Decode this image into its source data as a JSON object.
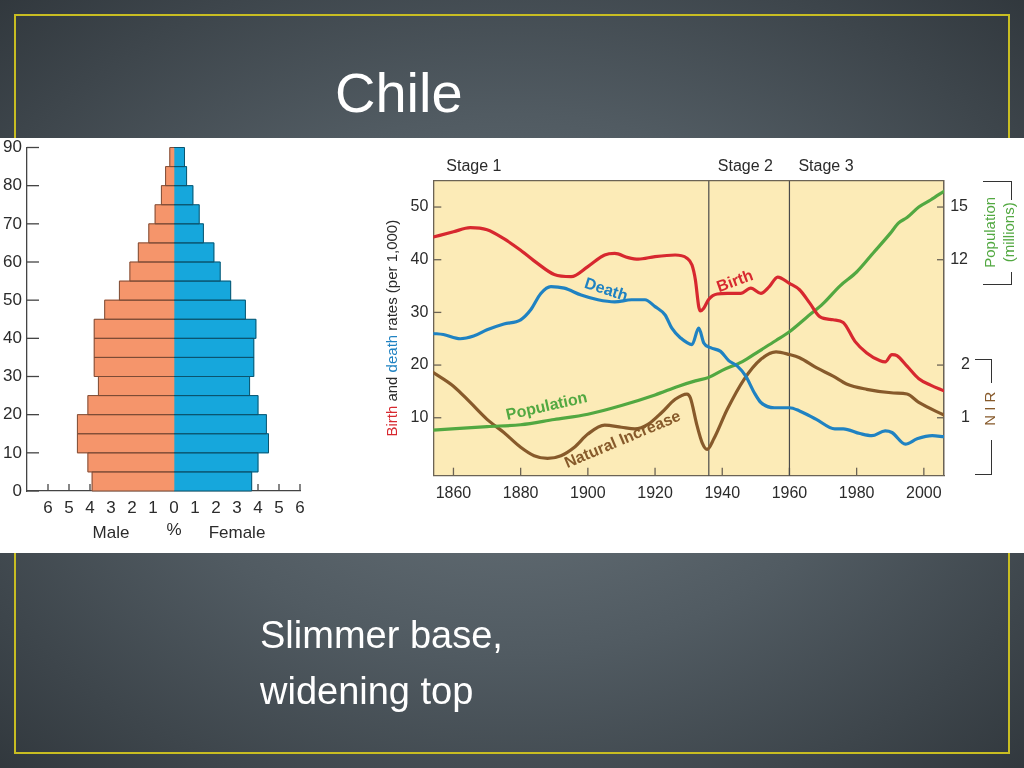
{
  "chart_data": [
    {
      "type": "bar",
      "annotations": [
        "Slimmer base, widening top"
      ],
      "orientation": "horizontal",
      "stacked": true,
      "xlabel": "%",
      "x": [
        2.5,
        7.5,
        12.5,
        17.5,
        22.5,
        27.5,
        32.5,
        37.5,
        42.5,
        47.5,
        52.5,
        57.5,
        62.5,
        67.5,
        72.5,
        77.5,
        82.5,
        87.5
      ],
      "series": [
        {
          "name": "Male",
          "color": "#f5956b",
          "values": [
            -3.9,
            -4.1,
            -4.6,
            -4.6,
            -4.1,
            -3.6,
            -3.8,
            -3.8,
            -3.8,
            -3.3,
            -2.6,
            -2.1,
            -1.7,
            -1.2,
            -0.9,
            -0.6,
            -0.4,
            -0.2
          ]
        },
        {
          "name": "Female",
          "color": "#16a7dc",
          "values": [
            3.7,
            4.0,
            4.5,
            4.4,
            4.0,
            3.6,
            3.8,
            3.8,
            3.9,
            3.4,
            2.7,
            2.2,
            1.9,
            1.4,
            1.2,
            0.9,
            0.6,
            0.5
          ]
        }
      ],
      "xlim": [
        -7,
        6
      ],
      "xticks": [
        {
          "value": -6,
          "label": "6"
        },
        {
          "value": -5,
          "label": "5"
        },
        {
          "value": -4,
          "label": "4"
        },
        {
          "value": -3,
          "label": "3"
        },
        {
          "value": -2,
          "label": "2"
        },
        {
          "value": -1,
          "label": "1"
        },
        0,
        1,
        2,
        3,
        4,
        5,
        6
      ],
      "ylim": [
        0,
        90
      ],
      "yticks": [
        0,
        10,
        20,
        30,
        40,
        50,
        60,
        70,
        80,
        90
      ]
    },
    {
      "type": "line",
      "title": "Chile",
      "ylabel": "Birth and death rates (per 1,000)",
      "y2label": "Population (millions)",
      "y3label": "N I R",
      "xlim": [
        1854,
        2006
      ],
      "xticks": [
        1860,
        1880,
        1900,
        1920,
        1940,
        1960,
        1980,
        2000
      ],
      "ylim": [
        -1,
        55
      ],
      "yticks": [
        10,
        20,
        30,
        40,
        50
      ],
      "y2lim": [
        -0.3,
        16.5
      ],
      "y2ticks": [
        12,
        15
      ],
      "y3lim": [
        -0.1,
        5.5
      ],
      "y3ticks": [
        1,
        2
      ],
      "ref_lines": [
        {
          "axis": "x",
          "value": 1936,
          "label": "Stage 2",
          "color": "#4a4a4a"
        },
        {
          "axis": "x",
          "value": 1960,
          "label": "Stage 3",
          "color": "#4a4a4a"
        }
      ],
      "annotations": [
        "Stage 1"
      ],
      "series": [
        {
          "name": "Birth",
          "color": "#d7282f",
          "x": [
            1854,
            1860,
            1865,
            1870,
            1875,
            1880,
            1885,
            1890,
            1895,
            1900,
            1905,
            1908,
            1912,
            1915,
            1920,
            1926,
            1929.5,
            1931,
            1932,
            1933,
            1933.5,
            1934.5,
            1936,
            1938.5,
            1941.5,
            1945.5,
            1948.5,
            1951.5,
            1954,
            1956.5,
            1960,
            1963,
            1966,
            1969,
            1973,
            1976,
            1979.5,
            1983,
            1987,
            1988.5,
            1990.5,
            1992,
            1995,
            1998.5,
            2002,
            2006
          ],
          "values": [
            44.3,
            45.3,
            46.1,
            45.7,
            44.0,
            41.8,
            39.3,
            37.2,
            36.8,
            38.7,
            40.9,
            41.2,
            40.4,
            40.1,
            40.6,
            40.9,
            40.3,
            39.0,
            36.2,
            31.1,
            30.3,
            30.8,
            32.5,
            33.5,
            33.6,
            33.6,
            34.6,
            33.6,
            34.9,
            36.7,
            35.5,
            34.3,
            31.8,
            29.2,
            28.6,
            28.1,
            24.5,
            22.3,
            20.8,
            20.6,
            22.0,
            21.8,
            19.8,
            17.4,
            16.2,
            15.1
          ]
        },
        {
          "name": "Death",
          "color": "#1f82c2",
          "x": [
            1854,
            1857,
            1862,
            1866,
            1870,
            1875,
            1880,
            1883,
            1886,
            1889,
            1893,
            1898,
            1903,
            1908,
            1913,
            1917,
            1920,
            1923,
            1925,
            1927.5,
            1931,
            1933,
            1934.5,
            1936.5,
            1939.5,
            1942,
            1944.5,
            1947,
            1949.5,
            1951.5,
            1955.5,
            1960,
            1963,
            1968,
            1973.5,
            1976,
            1981,
            1984.5,
            1988.5,
            1990.5,
            1994.5,
            1998,
            2002.5,
            2006
          ],
          "values": [
            26.0,
            25.8,
            25.0,
            25.5,
            26.7,
            27.8,
            28.6,
            30.5,
            33.6,
            34.9,
            34.6,
            33.3,
            32.4,
            32.0,
            32.4,
            32.4,
            31.1,
            29.5,
            27.0,
            25.2,
            23.9,
            27.0,
            24.2,
            23.3,
            22.6,
            20.8,
            19.8,
            17.9,
            14.8,
            12.9,
            11.9,
            11.9,
            11.3,
            9.7,
            7.9,
            7.9,
            7.0,
            6.6,
            7.5,
            7.2,
            5.0,
            6.0,
            6.6,
            6.4
          ]
        },
        {
          "name": "Population",
          "color": "#52a841",
          "axis": "y2",
          "x": [
            1854,
            1870,
            1880,
            1890,
            1900,
            1910,
            1920,
            1927,
            1932,
            1936,
            1940,
            1946,
            1951,
            1956,
            1960,
            1965,
            1970,
            1975,
            1980,
            1985,
            1990,
            1992.5,
            1995,
            1998.5,
            2002,
            2006
          ],
          "values": [
            2.3,
            2.5,
            2.6,
            2.9,
            3.2,
            3.7,
            4.3,
            4.8,
            5.1,
            5.3,
            5.7,
            6.2,
            6.8,
            7.4,
            7.9,
            8.7,
            9.5,
            10.5,
            11.3,
            12.4,
            13.5,
            14.1,
            14.4,
            15.0,
            15.4,
            15.9
          ]
        },
        {
          "name": "Natural Increase",
          "color": "#875a2b",
          "axis": "y3",
          "x": [
            1854,
            1860,
            1865,
            1870,
            1875,
            1880,
            1884,
            1888,
            1892,
            1896,
            1900,
            1905,
            1910,
            1914,
            1918,
            1922,
            1926,
            1929.5,
            1930.5,
            1932.5,
            1934,
            1935.5,
            1937.5,
            1941.5,
            1946.5,
            1951.5,
            1956,
            1960,
            1963,
            1968,
            1973,
            1977,
            1983,
            1991,
            1995,
            1998.5,
            2006
          ],
          "values": [
            1.86,
            1.6,
            1.29,
            0.97,
            0.72,
            0.44,
            0.28,
            0.23,
            0.28,
            0.44,
            0.69,
            0.86,
            0.82,
            0.79,
            0.88,
            1.1,
            1.35,
            1.45,
            1.38,
            0.85,
            0.53,
            0.4,
            0.6,
            1.16,
            1.73,
            2.11,
            2.25,
            2.2,
            2.14,
            1.95,
            1.79,
            1.64,
            1.54,
            1.47,
            1.45,
            1.29,
            1.05
          ]
        }
      ]
    }
  ]
}
